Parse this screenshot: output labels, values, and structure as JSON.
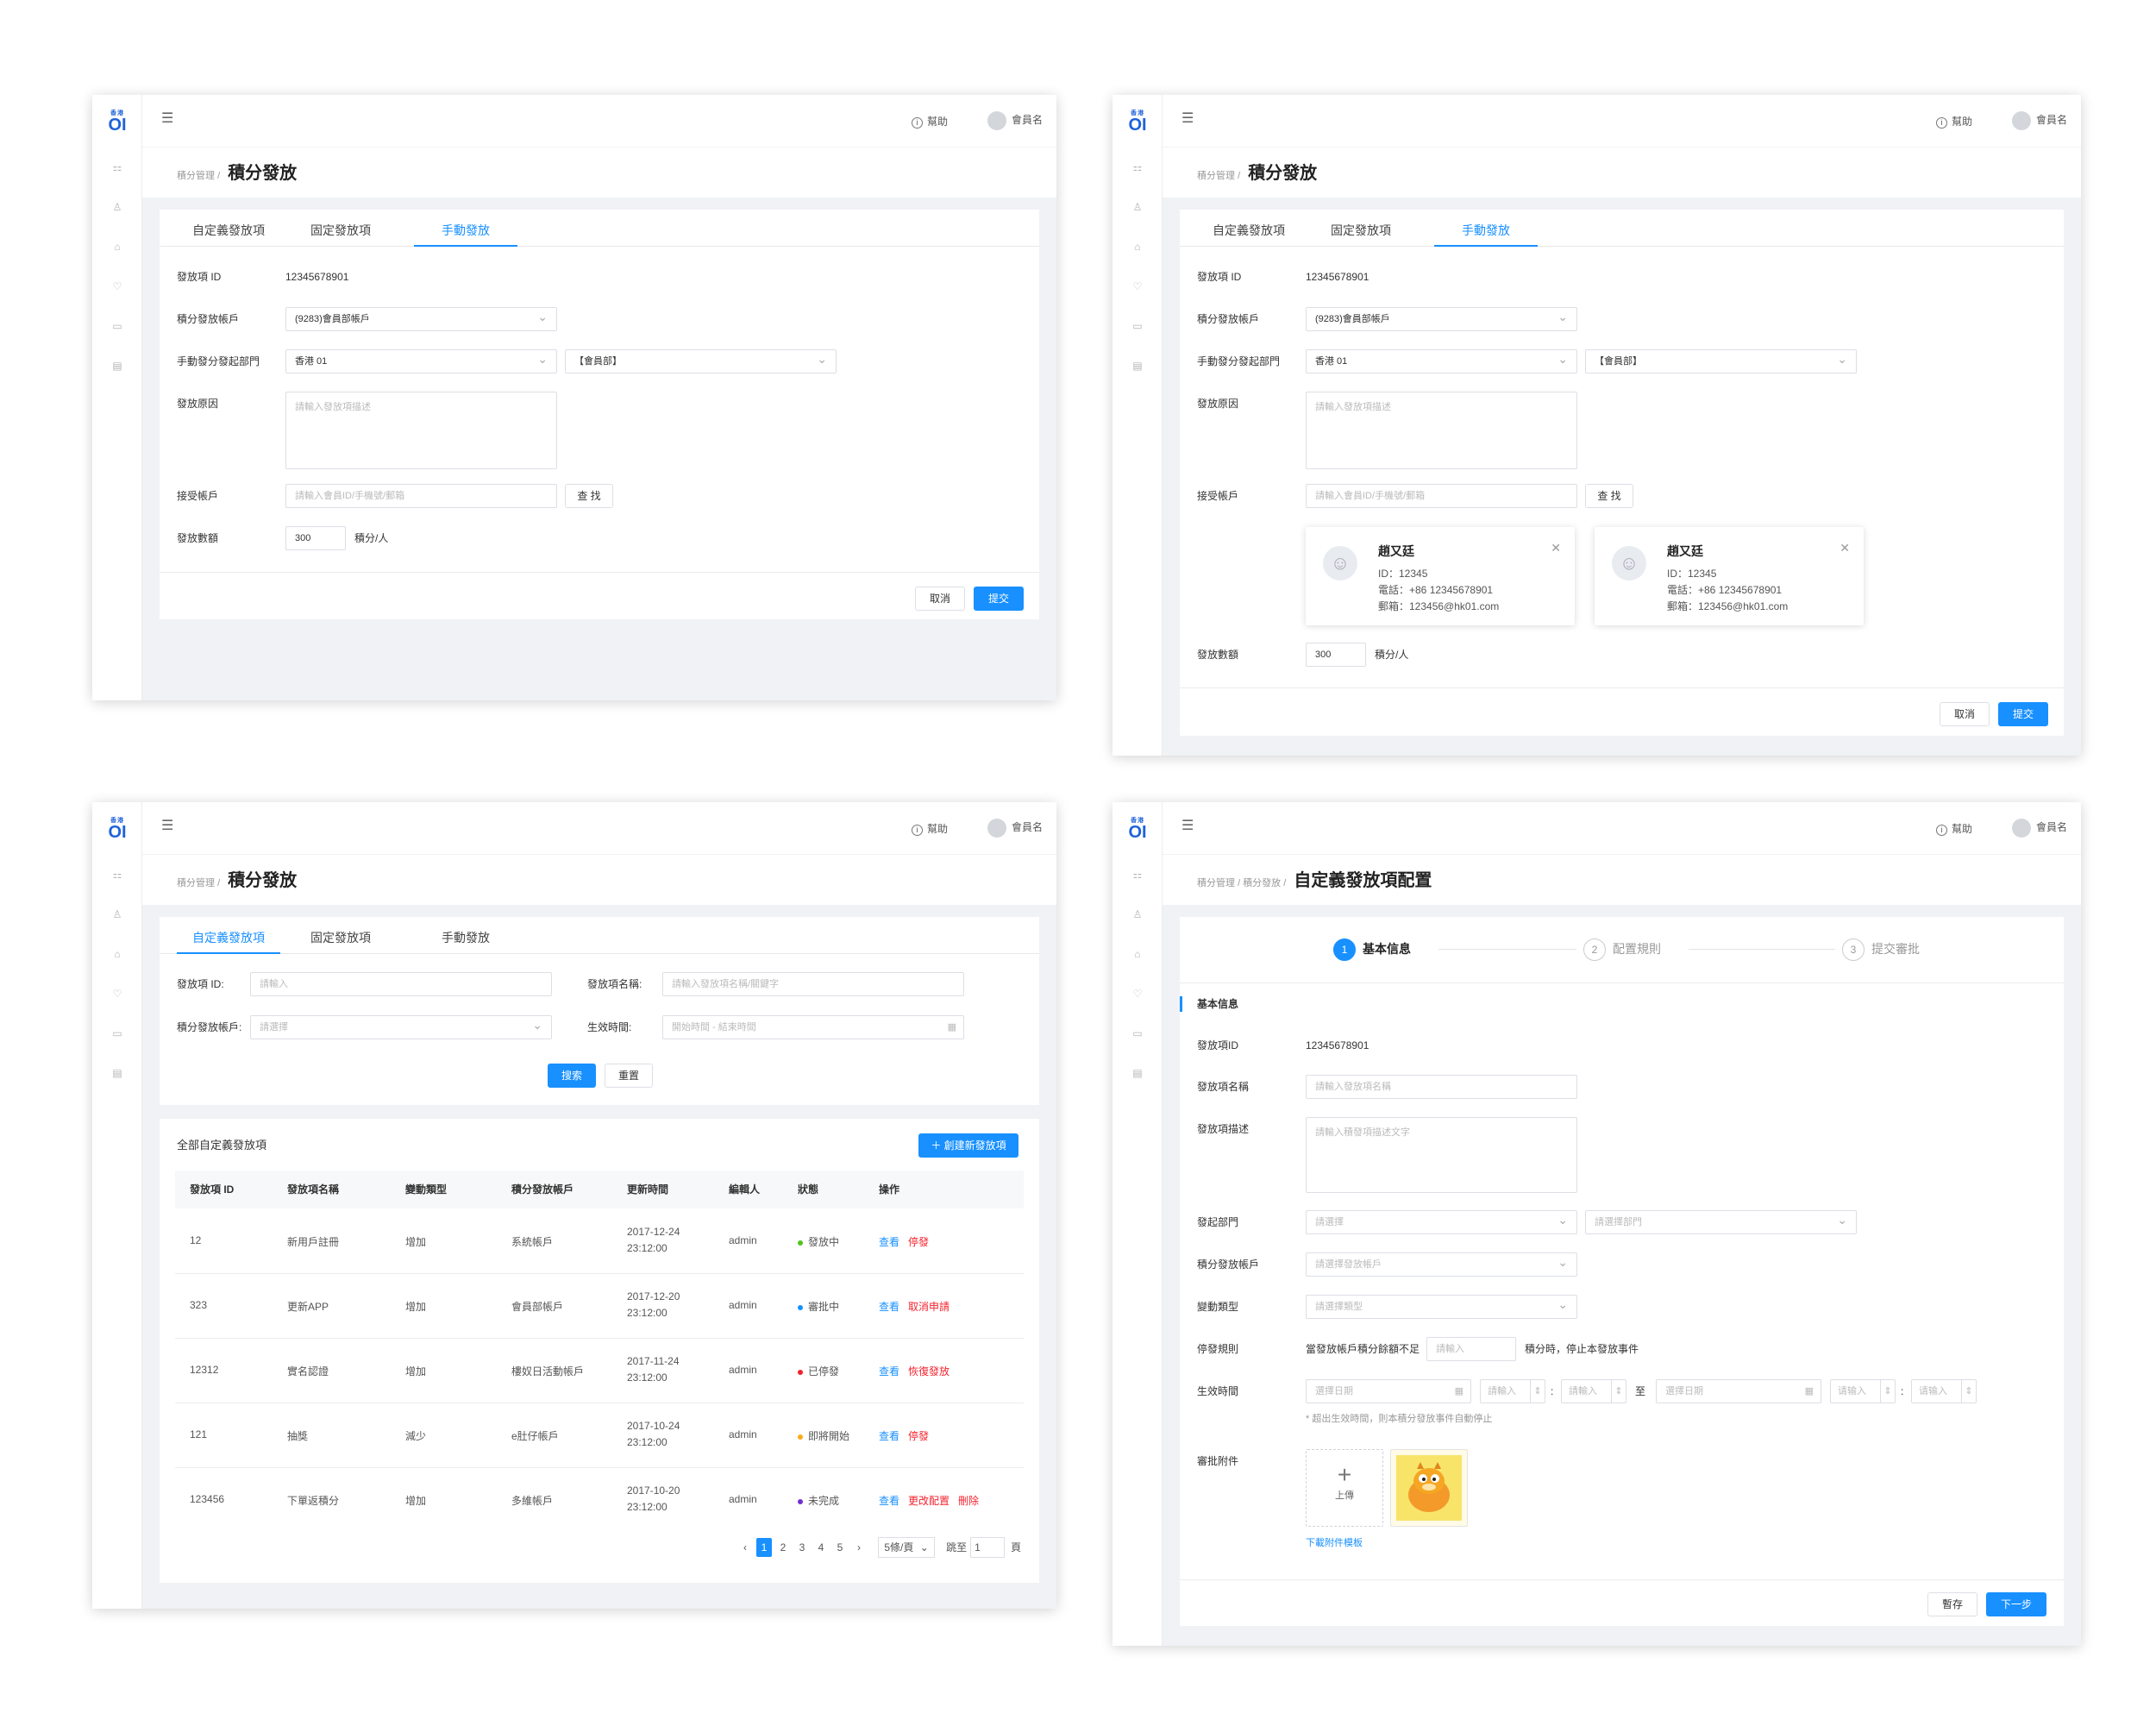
{
  "common": {
    "logo_top": "香港",
    "logo_main": "OI",
    "help": "幫助",
    "user": "會員名",
    "crumb_root": "積分管理",
    "crumb_sep": "/",
    "page_title": "積分發放"
  },
  "tabs": {
    "custom": "自定義發放項",
    "fixed": "固定發放項",
    "manual": "手動發放"
  },
  "form": {
    "id_label": "發放項 ID",
    "id_value": "12345678901",
    "account_label": "積分發放帳戶",
    "account_value": "(9283)會員部帳戶",
    "dept_label": "手動發分發起部門",
    "dept_region": "香港 01",
    "dept_name": "【會員部】",
    "reason_label": "發放原因",
    "reason_placeholder": "請輸入發放項描述",
    "receiver_label": "接受帳戶",
    "receiver_placeholder": "請輸入會員ID/手機號/郵箱",
    "search_btn": "查 找",
    "amount_label": "發放數額",
    "amount_value": "300",
    "amount_unit": "積分/人",
    "cancel": "取消",
    "submit": "提交"
  },
  "users": [
    {
      "name": "趙又廷",
      "id": "ID：12345",
      "phone": "電話：+86 12345678901",
      "email": "郵箱：123456@hk01.com"
    },
    {
      "name": "趙又廷",
      "id": "ID：12345",
      "phone": "電話：+86 12345678901",
      "email": "郵箱：123456@hk01.com"
    }
  ],
  "list": {
    "f_id": "發放項 ID:",
    "f_id_ph": "請輸入",
    "f_name": "發放項名稱:",
    "f_name_ph": "請輸入發放項名稱/關鍵字",
    "f_account": "積分發放帳戶:",
    "f_account_ph": "請選擇",
    "f_time": "生效時間:",
    "f_time_ph": "開始時間 - 結束時間",
    "search": "搜索",
    "reset": "重置",
    "section_title": "全部自定義發放項",
    "create": "＋ 創建新發放項",
    "headers": [
      "發放項 ID",
      "發放項名稱",
      "變動類型",
      "積分發放帳戶",
      "更新時間",
      "編輯人",
      "狀態",
      "操作"
    ],
    "rows": [
      {
        "id": "12",
        "name": "新用戶註冊",
        "type": "增加",
        "account": "系統帳戶",
        "date": "2017-12-24",
        "time": "23:12:00",
        "editor": "admin",
        "status": "發放中",
        "color": "#52c41a",
        "a1": "查看",
        "a2": "停發",
        "a3": ""
      },
      {
        "id": "323",
        "name": "更新APP",
        "type": "增加",
        "account": "會員部帳戶",
        "date": "2017-12-20",
        "time": "23:12:00",
        "editor": "admin",
        "status": "審批中",
        "color": "#1890ff",
        "a1": "查看",
        "a2": "取消申請",
        "a3": ""
      },
      {
        "id": "12312",
        "name": "實名認證",
        "type": "增加",
        "account": "樓奴日活動帳戶",
        "date": "2017-11-24",
        "time": "23:12:00",
        "editor": "admin",
        "status": "已停發",
        "color": "#f5222d",
        "a1": "查看",
        "a2": "恢復發放",
        "a3": ""
      },
      {
        "id": "121",
        "name": "抽獎",
        "type": "減少",
        "account": "e肚仔帳戶",
        "date": "2017-10-24",
        "time": "23:12:00",
        "editor": "admin",
        "status": "即將開始",
        "color": "#faad14",
        "a1": "查看",
        "a2": "停發",
        "a3": ""
      },
      {
        "id": "123456",
        "name": "下單返積分",
        "type": "增加",
        "account": "多維帳戶",
        "date": "2017-10-20",
        "time": "23:12:00",
        "editor": "admin",
        "status": "未完成",
        "color": "#722ed1",
        "a1": "查看",
        "a2": "更改配置",
        "a3": "刪除"
      }
    ],
    "pager": {
      "prev": "‹",
      "pages": [
        "1",
        "2",
        "3",
        "4",
        "5"
      ],
      "next": "›",
      "size": "5條/頁",
      "jump": "跳至",
      "jump_val": "1",
      "unit": "頁"
    }
  },
  "config": {
    "crumb_mid": "積分發放",
    "title": "自定義發放項配置",
    "steps": [
      {
        "n": "1",
        "label": "基本信息"
      },
      {
        "n": "2",
        "label": "配置規則"
      },
      {
        "n": "3",
        "label": "提交審批"
      }
    ],
    "section": "基本信息",
    "id_label": "發放項ID",
    "id_value": "12345678901",
    "name_label": "發放項名稱",
    "name_ph": "請輸入發放項名稱",
    "desc_label": "發放項描述",
    "desc_ph": "請輸入積發項描述文字",
    "dept_label": "發起部門",
    "dept_ph1": "請選擇",
    "dept_ph2": "請選擇部門",
    "account_label": "積分發放帳戶",
    "account_ph": "請選擇發放帳戶",
    "type_label": "變動類型",
    "type_ph": "請選擇類型",
    "stop_label": "停發規則",
    "stop_pre": "當發放帳戶積分餘額不足",
    "stop_ph": "請輸入",
    "stop_post": "積分時，停止本發放事件",
    "time_label": "生效時間",
    "date_ph": "選擇日期",
    "num_ph": "請輸入",
    "colon": ":",
    "to": "至",
    "num_ph2": "请输入",
    "time_note": "* 超出生效時間，則本積分發放事件自動停止",
    "attach_label": "審批附件",
    "upload": "上傳",
    "download": "下載附件模板",
    "save": "暫存",
    "next": "下一步"
  }
}
